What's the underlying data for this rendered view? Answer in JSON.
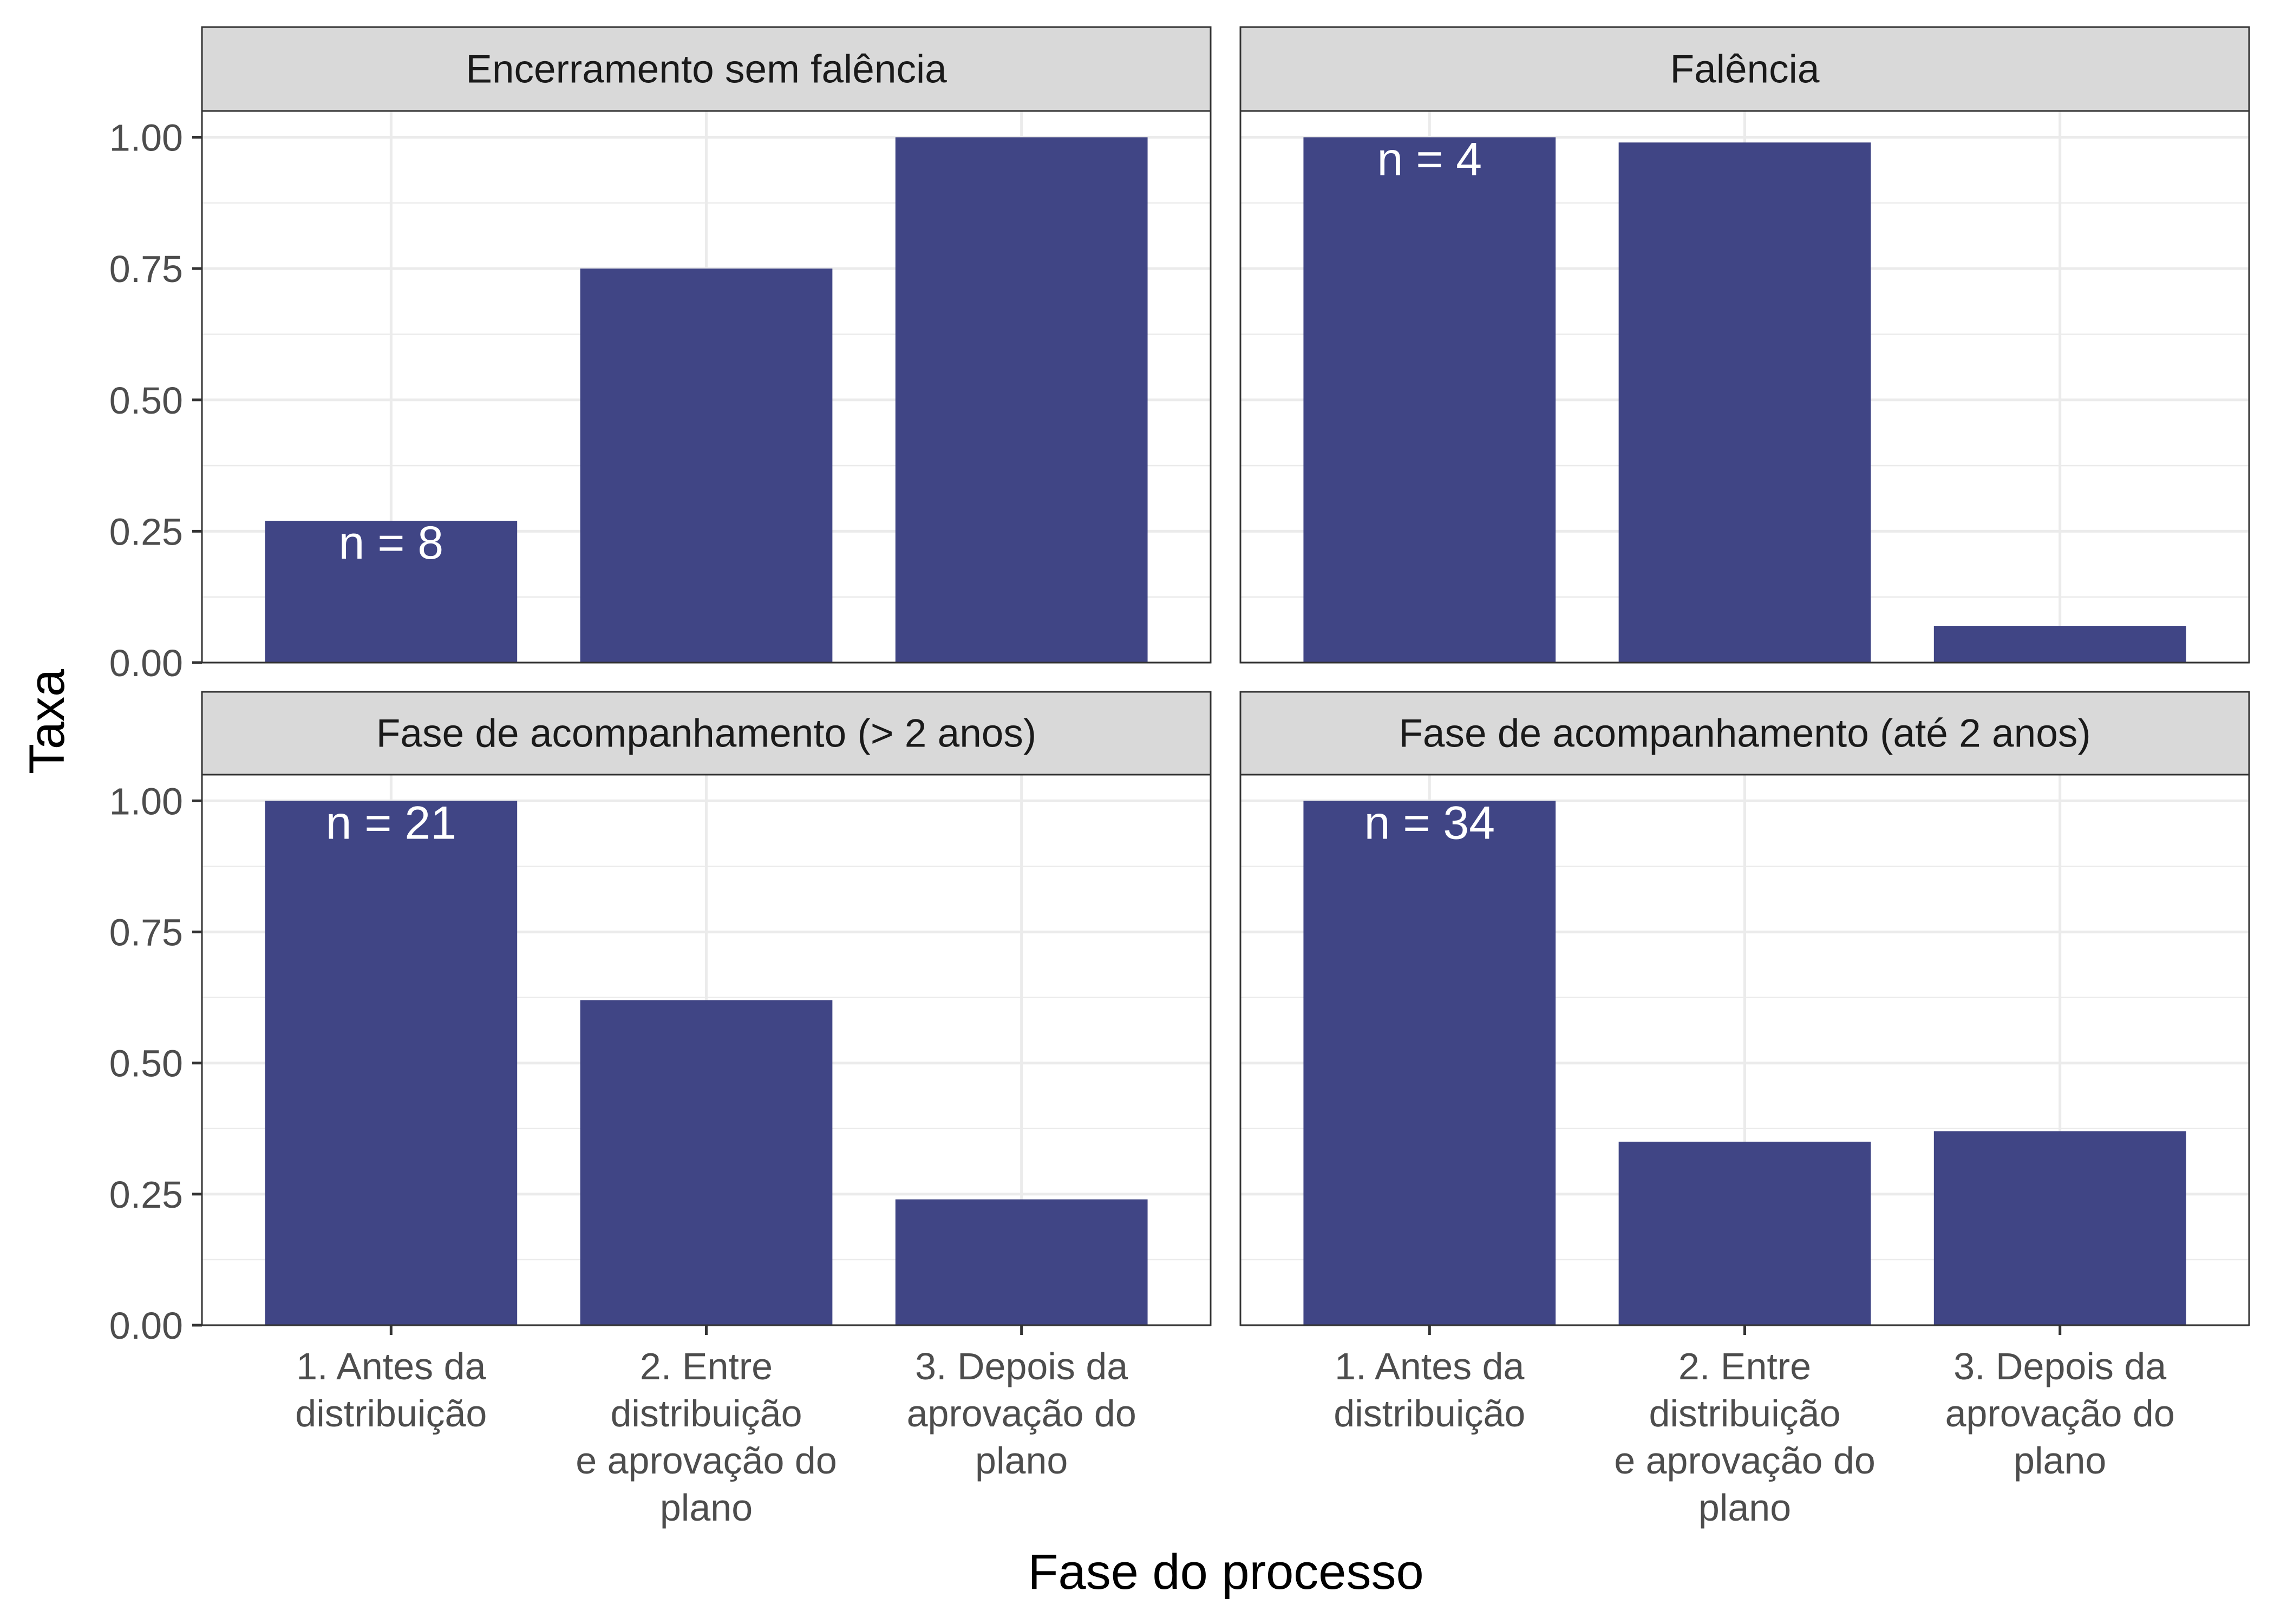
{
  "chart_data": {
    "type": "bar",
    "layout": "facet-grid-2x2",
    "xlabel": "Fase do processo",
    "ylabel": "Taxa",
    "ylim": [
      0,
      1.05
    ],
    "yticks": [
      "0.00",
      "0.25",
      "0.50",
      "0.75",
      "1.00"
    ],
    "ytick_values": [
      0,
      0.25,
      0.5,
      0.75,
      1.0
    ],
    "categories": [
      [
        "1. Antes da",
        "distribuição"
      ],
      [
        "2. Entre",
        "distribuição",
        "e aprovação do",
        "plano"
      ],
      [
        "3. Depois da",
        "aprovação do",
        "plano"
      ]
    ],
    "bar_color": "#404585",
    "grid": true,
    "legend": "none",
    "facets": [
      {
        "title": "Encerramento sem falência",
        "values": [
          0.27,
          0.75,
          1.0
        ],
        "label": "n = 8",
        "label_index": 0
      },
      {
        "title": "Falência",
        "values": [
          1.0,
          0.99,
          0.07
        ],
        "label": "n = 4",
        "label_index": 0
      },
      {
        "title": "Fase de acompanhamento (> 2 anos)",
        "values": [
          1.0,
          0.62,
          0.24
        ],
        "label": "n = 21",
        "label_index": 0
      },
      {
        "title": "Fase de acompanhamento (até 2 anos)",
        "values": [
          1.0,
          0.35,
          0.37
        ],
        "label": "n = 34",
        "label_index": 0
      }
    ]
  }
}
